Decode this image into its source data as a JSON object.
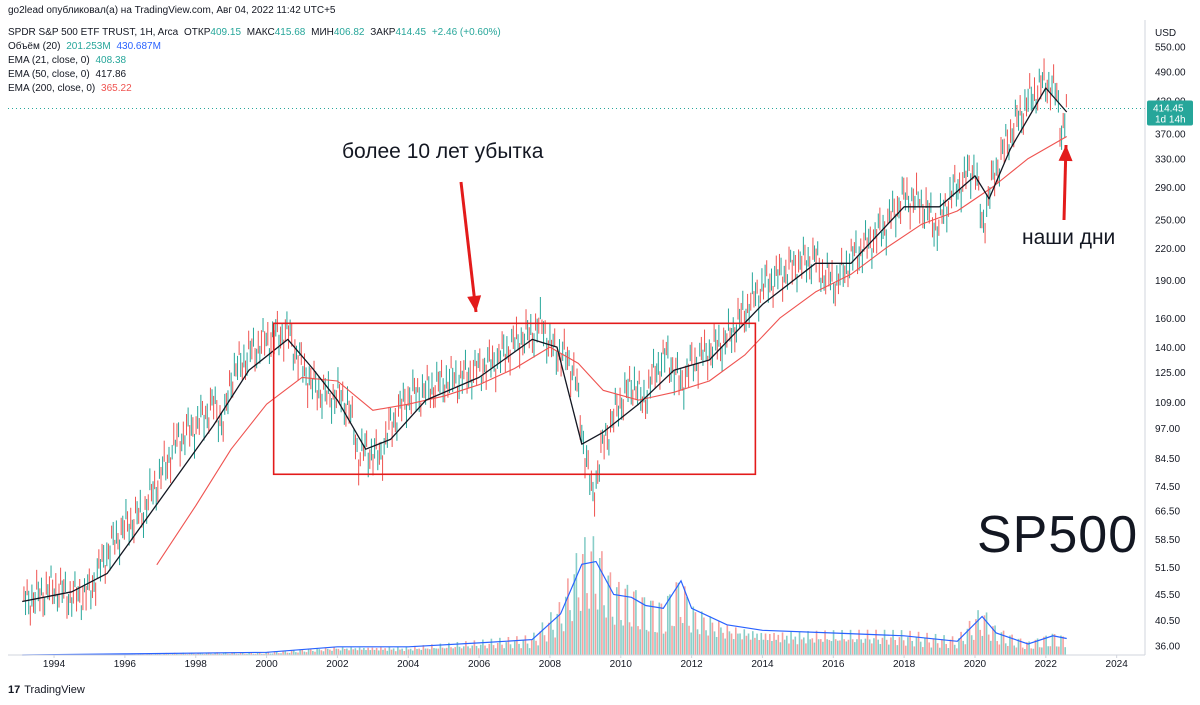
{
  "publisher_line": "go2lead опубликовал(а) на TradingView.com, Авг 04, 2022 11:42 UTC+5",
  "symbol": {
    "name": "SPDR S&P 500 ETF TRUST, 1H, Arca",
    "open_label": "ОТКР",
    "open": "409.15",
    "high_label": "МАКС",
    "high": "415.68",
    "low_label": "МИН",
    "low": "406.82",
    "close_label": "ЗАКР",
    "close": "414.45",
    "change": "+2.46 (+0.60%)"
  },
  "indicators": {
    "volume": {
      "label": "Объём (20)",
      "v1": "201.253M",
      "v2": "430.687M"
    },
    "ema21": {
      "label": "EMA (21, close, 0)",
      "value": "408.38"
    },
    "ema50": {
      "label": "EMA (50, close, 0)",
      "value": "417.86"
    },
    "ema200": {
      "label": "EMA (200, close, 0)",
      "value": "365.22"
    }
  },
  "price_badge": {
    "price": "414.45",
    "countdown": "1d 14h"
  },
  "annotations": {
    "loss_text": "более 10 лет убытка",
    "now_text": "наши дни",
    "watermark": "SP500"
  },
  "footer": {
    "brand": "TradingView"
  },
  "colors": {
    "up": "#26a69a",
    "down": "#ef5350",
    "ema_black": "#131722",
    "ema_red": "#ef5350",
    "volume_ma": "#2962ff",
    "annot_red": "#e31b1b"
  },
  "chart_data": {
    "type": "line",
    "currency": "USD",
    "y_scale": "log",
    "y_ticks": [
      550,
      490,
      430,
      370,
      330,
      290,
      250,
      220,
      190,
      160,
      140,
      125,
      109,
      97,
      84.5,
      74.5,
      66.5,
      58.5,
      51.5,
      45.5,
      40.5,
      36
    ],
    "y_tick_labels": [
      "USD",
      "550.00",
      "490.00",
      "430.00",
      "370.00",
      "330.00",
      "290.00",
      "250.00",
      "220.00",
      "190.00",
      "160.00",
      "140.00",
      "125.00",
      "109.00",
      "97.00",
      "84.50",
      "74.50",
      "66.50",
      "58.50",
      "51.50",
      "45.50",
      "40.50",
      "36.00"
    ],
    "x_ticks": [
      "1994",
      "1996",
      "1998",
      "2000",
      "2002",
      "2004",
      "2006",
      "2008",
      "2010",
      "2012",
      "2014",
      "2016",
      "2018",
      "2020",
      "2022",
      "2024"
    ],
    "price_series": {
      "x": [
        1993.1,
        1993.5,
        1994.0,
        1994.5,
        1995.0,
        1995.5,
        1996.0,
        1996.5,
        1997.0,
        1997.5,
        1998.0,
        1998.5,
        1998.8,
        1999.0,
        1999.5,
        2000.0,
        2000.6,
        2001.0,
        2001.3,
        2001.7,
        2002.0,
        2002.3,
        2002.6,
        2002.8,
        2003.2,
        2003.5,
        2004.0,
        2004.5,
        2005.0,
        2005.5,
        2006.0,
        2006.5,
        2007.0,
        2007.5,
        2007.8,
        2008.0,
        2008.4,
        2008.7,
        2008.9,
        2009.2,
        2009.5,
        2010.0,
        2010.4,
        2010.6,
        2011.0,
        2011.3,
        2011.7,
        2012.0,
        2012.5,
        2013.0,
        2013.5,
        2014.0,
        2014.5,
        2015.0,
        2015.5,
        2015.7,
        2016.1,
        2016.5,
        2017.0,
        2017.5,
        2018.0,
        2018.5,
        2018.95,
        2019.3,
        2019.6,
        2020.0,
        2020.2,
        2020.5,
        2021.0,
        2021.5,
        2022.0,
        2022.3,
        2022.45,
        2022.59
      ],
      "y": [
        44,
        45,
        47,
        45,
        46,
        55,
        62,
        66,
        78,
        92,
        98,
        108,
        98,
        123,
        136,
        145,
        150,
        128,
        118,
        112,
        113,
        108,
        85,
        88,
        85,
        98,
        112,
        115,
        120,
        122,
        127,
        132,
        143,
        150,
        156,
        140,
        135,
        125,
        95,
        70,
        90,
        110,
        120,
        108,
        127,
        135,
        118,
        130,
        138,
        145,
        165,
        185,
        195,
        205,
        210,
        195,
        188,
        210,
        225,
        245,
        278,
        270,
        240,
        280,
        295,
        320,
        240,
        300,
        370,
        430,
        470,
        445,
        370,
        414
      ]
    },
    "ema21_series": {
      "x": [
        1993.1,
        1994.5,
        1995.5,
        1997.0,
        1998.5,
        1999.5,
        2000.6,
        2001.3,
        2002.0,
        2002.8,
        2003.5,
        2004.5,
        2006.0,
        2007.5,
        2008.2,
        2008.9,
        2009.5,
        2010.5,
        2011.5,
        2012.5,
        2014.0,
        2015.5,
        2016.5,
        2018.0,
        2019.0,
        2020.0,
        2020.4,
        2021.0,
        2022.0,
        2022.59
      ],
      "y": [
        44,
        46,
        50,
        70,
        98,
        126,
        145,
        127,
        110,
        88,
        92,
        110,
        122,
        145,
        140,
        90,
        95,
        108,
        126,
        132,
        170,
        205,
        205,
        265,
        265,
        305,
        275,
        345,
        455,
        408
      ]
    },
    "ema200_series": {
      "x": [
        1996.9,
        1998.0,
        1999.0,
        2000.0,
        2001.0,
        2002.0,
        2003.0,
        2004.0,
        2005.0,
        2006.0,
        2007.0,
        2008.0,
        2008.8,
        2009.5,
        2010.5,
        2011.5,
        2012.5,
        2013.5,
        2014.5,
        2015.5,
        2016.5,
        2017.5,
        2018.5,
        2019.5,
        2020.5,
        2021.5,
        2022.59
      ],
      "y": [
        52,
        68,
        88,
        108,
        122,
        120,
        105,
        108,
        112,
        118,
        127,
        140,
        130,
        115,
        110,
        114,
        120,
        135,
        160,
        180,
        195,
        220,
        245,
        260,
        290,
        330,
        365
      ]
    },
    "volume_ma_series": {
      "x": [
        1993.1,
        1996.0,
        2000.0,
        2002.0,
        2004.0,
        2006.0,
        2007.5,
        2008.3,
        2008.9,
        2009.3,
        2009.8,
        2010.3,
        2010.7,
        2011.2,
        2011.7,
        2012.0,
        2013.0,
        2014.0,
        2016.0,
        2018.0,
        2019.5,
        2020.2,
        2020.6,
        2021.5,
        2022.2,
        2022.59
      ],
      "y": [
        0,
        2,
        5,
        15,
        15,
        22,
        28,
        75,
        165,
        170,
        110,
        105,
        90,
        85,
        135,
        85,
        55,
        45,
        40,
        35,
        25,
        70,
        40,
        20,
        35,
        30
      ]
    },
    "box": {
      "x": [
        2000.2,
        2013.8
      ],
      "y": [
        78.5,
        156
      ]
    },
    "current_price": 414.45
  }
}
